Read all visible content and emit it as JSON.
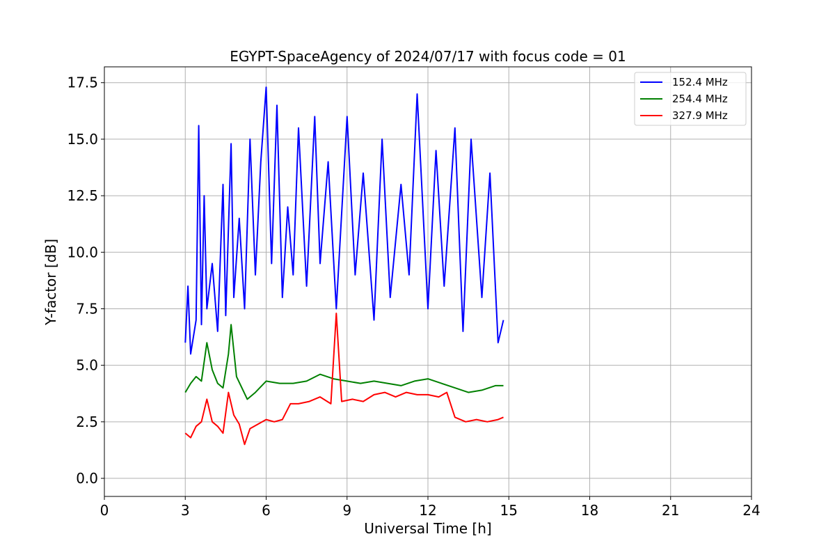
{
  "chart_data": {
    "type": "line",
    "title": "EGYPT-SpaceAgency of 2024/07/17 with focus code = 01",
    "xlabel": "Universal Time [h]",
    "ylabel": "Y-factor [dB]",
    "xlim": [
      0,
      24
    ],
    "ylim": [
      -0.8,
      18.2
    ],
    "xticks": [
      0,
      3,
      6,
      9,
      12,
      15,
      18,
      21,
      24
    ],
    "xtick_labels": [
      "0",
      "3",
      "6",
      "9",
      "12",
      "15",
      "18",
      "21",
      "24"
    ],
    "yticks": [
      0.0,
      2.5,
      5.0,
      7.5,
      10.0,
      12.5,
      15.0,
      17.5
    ],
    "ytick_labels": [
      "0.0",
      "2.5",
      "5.0",
      "7.5",
      "10.0",
      "12.5",
      "15.0",
      "17.5"
    ],
    "grid": true,
    "legend_position": "top-right",
    "series": [
      {
        "name": " 152.4 MHz",
        "color": "#0000ff",
        "x": [
          3.0,
          3.1,
          3.2,
          3.4,
          3.5,
          3.6,
          3.7,
          3.8,
          4.0,
          4.2,
          4.4,
          4.5,
          4.7,
          4.8,
          5.0,
          5.2,
          5.4,
          5.6,
          5.8,
          6.0,
          6.2,
          6.4,
          6.6,
          6.8,
          7.0,
          7.2,
          7.5,
          7.8,
          8.0,
          8.3,
          8.6,
          9.0,
          9.3,
          9.6,
          10.0,
          10.3,
          10.6,
          11.0,
          11.3,
          11.6,
          12.0,
          12.3,
          12.6,
          13.0,
          13.3,
          13.6,
          14.0,
          14.3,
          14.6,
          14.8
        ],
        "y": [
          6.0,
          8.5,
          5.5,
          7.0,
          15.6,
          6.8,
          12.5,
          7.5,
          9.5,
          6.5,
          13.0,
          7.2,
          14.8,
          8.0,
          11.5,
          7.5,
          15.0,
          9.0,
          14.0,
          17.3,
          9.5,
          16.5,
          8.0,
          12.0,
          9.0,
          15.5,
          8.5,
          16.0,
          9.5,
          14.0,
          7.5,
          16.0,
          9.0,
          13.5,
          7.0,
          15.0,
          8.0,
          13.0,
          9.0,
          17.0,
          7.5,
          14.5,
          8.5,
          15.5,
          6.5,
          15.0,
          8.0,
          13.5,
          6.0,
          7.0
        ]
      },
      {
        "name": " 254.4 MHz",
        "color": "#008000",
        "x": [
          3.0,
          3.2,
          3.4,
          3.6,
          3.8,
          4.0,
          4.2,
          4.4,
          4.6,
          4.7,
          4.9,
          5.1,
          5.3,
          5.6,
          6.0,
          6.5,
          7.0,
          7.5,
          8.0,
          8.5,
          9.0,
          9.5,
          10.0,
          10.5,
          11.0,
          11.5,
          12.0,
          12.5,
          13.0,
          13.5,
          14.0,
          14.5,
          14.8
        ],
        "y": [
          3.8,
          4.2,
          4.5,
          4.3,
          6.0,
          4.8,
          4.2,
          4.0,
          5.5,
          6.8,
          4.5,
          4.0,
          3.5,
          3.8,
          4.3,
          4.2,
          4.2,
          4.3,
          4.6,
          4.4,
          4.3,
          4.2,
          4.3,
          4.2,
          4.1,
          4.3,
          4.4,
          4.2,
          4.0,
          3.8,
          3.9,
          4.1,
          4.1
        ]
      },
      {
        "name": " 327.9 MHz",
        "color": "#ff0000",
        "x": [
          3.0,
          3.2,
          3.4,
          3.6,
          3.8,
          4.0,
          4.2,
          4.4,
          4.6,
          4.8,
          5.0,
          5.2,
          5.4,
          5.7,
          6.0,
          6.3,
          6.6,
          6.9,
          7.2,
          7.6,
          8.0,
          8.4,
          8.6,
          8.8,
          9.2,
          9.6,
          10.0,
          10.4,
          10.8,
          11.2,
          11.6,
          12.0,
          12.4,
          12.7,
          13.0,
          13.4,
          13.8,
          14.2,
          14.6,
          14.8
        ],
        "y": [
          2.0,
          1.8,
          2.3,
          2.5,
          3.5,
          2.5,
          2.3,
          2.0,
          3.8,
          2.8,
          2.4,
          1.5,
          2.2,
          2.4,
          2.6,
          2.5,
          2.6,
          3.3,
          3.3,
          3.4,
          3.6,
          3.3,
          7.3,
          3.4,
          3.5,
          3.4,
          3.7,
          3.8,
          3.6,
          3.8,
          3.7,
          3.7,
          3.6,
          3.8,
          2.7,
          2.5,
          2.6,
          2.5,
          2.6,
          2.7
        ]
      }
    ]
  }
}
